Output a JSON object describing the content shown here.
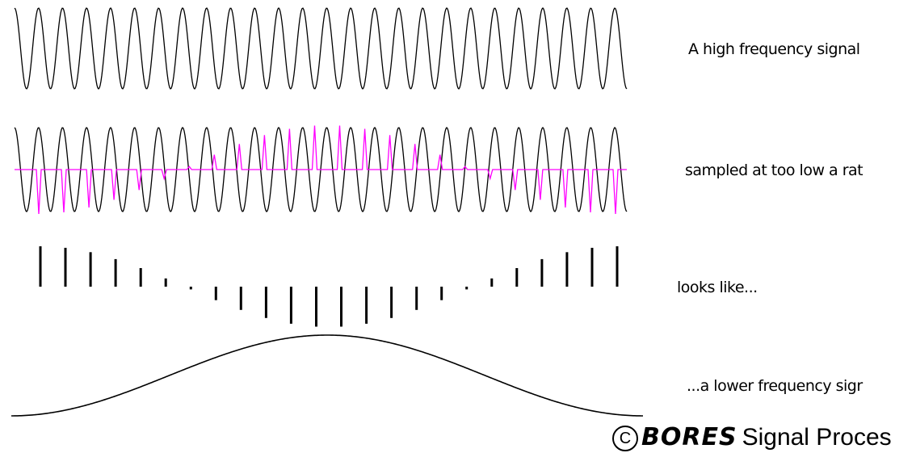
{
  "captions": {
    "high_frequency": "A high frequency signal",
    "sampled": "sampled at too low a rat",
    "looks_like": "looks like...",
    "lower_frequency": "...a lower frequency sigr"
  },
  "copyright": {
    "symbol": "C",
    "brand": "BORES",
    "rest": "Signal Proces"
  },
  "colors": {
    "signal": "#000000",
    "samples": "#ff00ff",
    "background": "#ffffff"
  }
}
